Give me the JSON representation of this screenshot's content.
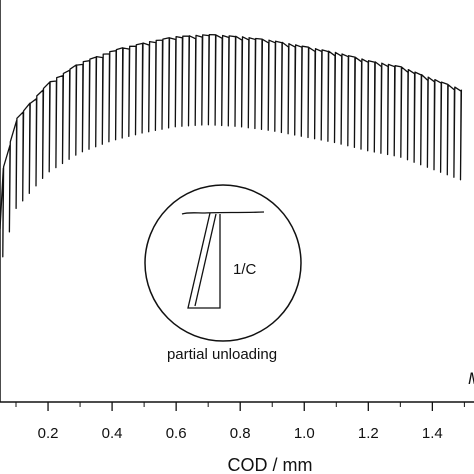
{
  "chart_data": {
    "type": "line",
    "title": "",
    "xlabel": "COD / mm",
    "ylabel": "",
    "xlim": [
      0.05,
      1.53
    ],
    "ylim": [
      0,
      1
    ],
    "x_ticks": [
      "0.2",
      "0.4",
      "0.6",
      "0.8",
      "1.0",
      "1.2",
      "1.4"
    ],
    "x_tick_values": [
      0.2,
      0.4,
      0.6,
      0.8,
      1.0,
      1.2,
      1.4
    ],
    "series": [
      {
        "note": "loading envelope with periodic partial unloading cycles",
        "envelope": [
          {
            "x": 0.05,
            "y": 0.55
          },
          {
            "x": 0.1,
            "y": 0.7
          },
          {
            "x": 0.2,
            "y": 0.79
          },
          {
            "x": 0.3,
            "y": 0.84
          },
          {
            "x": 0.4,
            "y": 0.87
          },
          {
            "x": 0.5,
            "y": 0.89
          },
          {
            "x": 0.6,
            "y": 0.905
          },
          {
            "x": 0.7,
            "y": 0.91
          },
          {
            "x": 0.8,
            "y": 0.905
          },
          {
            "x": 0.9,
            "y": 0.895
          },
          {
            "x": 1.0,
            "y": 0.88
          },
          {
            "x": 1.1,
            "y": 0.865
          },
          {
            "x": 1.2,
            "y": 0.845
          },
          {
            "x": 1.3,
            "y": 0.83
          },
          {
            "x": 1.4,
            "y": 0.8
          },
          {
            "x": 1.5,
            "y": 0.77
          }
        ],
        "unloading_count": 70,
        "unloading_drop": 0.22
      }
    ],
    "inset": {
      "label_slope": "1/C",
      "caption": "partial unloading"
    },
    "corner_mark": "M"
  }
}
